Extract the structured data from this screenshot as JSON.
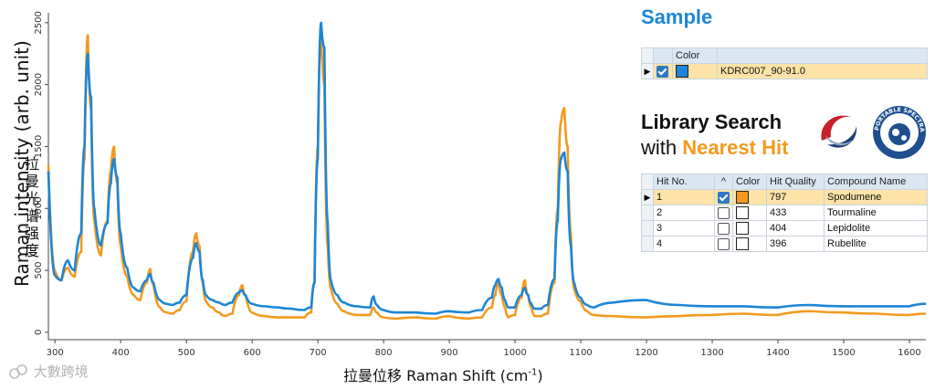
{
  "chart_data": {
    "type": "line",
    "xlabel": "拉曼位移 Raman Shift (cm",
    "xlabel_sup": "-1",
    "xlabel_close": ")",
    "ylabel": "Raman intensity (arb. unit)",
    "ylabel_zh": "拉曼光谱强度",
    "xlim": [
      290,
      1625
    ],
    "ylim": [
      -60,
      2580
    ],
    "xticks": [
      300,
      400,
      500,
      600,
      700,
      800,
      900,
      1000,
      1100,
      1200,
      1300,
      1400,
      1500,
      1600
    ],
    "yticks": [
      0,
      500,
      1000,
      1500,
      2000,
      2500
    ],
    "grid": false,
    "series": [
      {
        "color": "#f39a1e",
        "x": [
          290,
          300,
          310,
          320,
          330,
          340,
          345,
          350,
          355,
          360,
          370,
          380,
          385,
          390,
          395,
          400,
          410,
          420,
          430,
          440,
          445,
          450,
          460,
          470,
          480,
          490,
          500,
          510,
          515,
          520,
          525,
          530,
          540,
          550,
          560,
          570,
          580,
          585,
          590,
          600,
          620,
          640,
          660,
          680,
          690,
          695,
          700,
          705,
          710,
          715,
          720,
          730,
          740,
          760,
          780,
          785,
          790,
          800,
          820,
          850,
          880,
          900,
          930,
          950,
          965,
          970,
          975,
          980,
          985,
          990,
          1000,
          1010,
          1015,
          1020,
          1025,
          1030,
          1040,
          1050,
          1060,
          1065,
          1070,
          1075,
          1080,
          1085,
          1090,
          1100,
          1110,
          1120,
          1150,
          1200,
          1250,
          1300,
          1350,
          1400,
          1450,
          1500,
          1550,
          1600,
          1625
        ],
        "y": [
          1350,
          500,
          420,
          520,
          450,
          650,
          1400,
          2400,
          1800,
          900,
          620,
          900,
          1300,
          1500,
          1200,
          700,
          450,
          300,
          260,
          400,
          510,
          380,
          200,
          160,
          150,
          180,
          250,
          650,
          800,
          700,
          400,
          250,
          200,
          160,
          130,
          150,
          300,
          380,
          300,
          160,
          130,
          120,
          120,
          120,
          160,
          400,
          1500,
          2450,
          2000,
          700,
          350,
          230,
          170,
          140,
          140,
          200,
          160,
          120,
          110,
          120,
          110,
          130,
          110,
          120,
          200,
          300,
          400,
          300,
          200,
          120,
          140,
          280,
          420,
          300,
          200,
          130,
          130,
          150,
          400,
          1000,
          1700,
          1810,
          1500,
          800,
          350,
          250,
          170,
          140,
          130,
          120,
          130,
          140,
          150,
          140,
          170,
          160,
          150,
          140,
          150
        ]
      },
      {
        "color": "#1d86d6",
        "x": [
          290,
          300,
          310,
          320,
          330,
          340,
          345,
          350,
          355,
          360,
          370,
          380,
          385,
          390,
          395,
          400,
          410,
          420,
          430,
          440,
          445,
          450,
          460,
          470,
          480,
          490,
          500,
          510,
          515,
          520,
          525,
          530,
          540,
          550,
          560,
          570,
          580,
          585,
          590,
          600,
          620,
          640,
          660,
          680,
          690,
          695,
          700,
          705,
          710,
          715,
          720,
          730,
          740,
          760,
          780,
          785,
          790,
          800,
          820,
          850,
          880,
          900,
          930,
          950,
          965,
          970,
          975,
          980,
          985,
          990,
          1000,
          1010,
          1015,
          1020,
          1025,
          1030,
          1040,
          1050,
          1060,
          1065,
          1070,
          1075,
          1080,
          1085,
          1090,
          1100,
          1110,
          1120,
          1150,
          1200,
          1250,
          1300,
          1350,
          1400,
          1450,
          1500,
          1550,
          1600,
          1625
        ],
        "y": [
          1300,
          460,
          420,
          580,
          500,
          800,
          1500,
          2250,
          1900,
          1000,
          700,
          880,
          1200,
          1400,
          1250,
          800,
          520,
          360,
          330,
          420,
          470,
          400,
          260,
          230,
          220,
          240,
          300,
          600,
          720,
          650,
          420,
          300,
          260,
          240,
          220,
          240,
          320,
          340,
          300,
          230,
          210,
          200,
          190,
          180,
          200,
          400,
          1400,
          2500,
          2300,
          900,
          420,
          300,
          240,
          210,
          200,
          290,
          220,
          180,
          160,
          160,
          150,
          170,
          160,
          180,
          280,
          380,
          430,
          360,
          260,
          200,
          200,
          300,
          360,
          300,
          230,
          190,
          190,
          220,
          430,
          900,
          1400,
          1450,
          1300,
          700,
          400,
          280,
          220,
          200,
          240,
          260,
          220,
          210,
          210,
          200,
          220,
          210,
          210,
          210,
          230
        ]
      }
    ]
  },
  "panel": {
    "sample_title": "Sample",
    "sample_table": {
      "header": [
        "",
        "",
        "Color",
        ""
      ],
      "row": {
        "indicator": "▶",
        "checked": true,
        "swatch": "#1d86d6",
        "name": "KDRC007_90-91.0"
      }
    },
    "library_title": "Library Search",
    "with_text": "with",
    "nearest_hit": "Nearest Hit",
    "logo_text": "PORTABLE SPECTRAL SERVICES",
    "hit_table": {
      "headers": [
        "Hit No.",
        "^",
        "Color",
        "Hit Quality",
        "Compound Name"
      ],
      "rows": [
        {
          "indicator": "▶",
          "no": "1",
          "checked": true,
          "swatch": "#f39a1e",
          "quality": "797",
          "name": "Spodumene"
        },
        {
          "indicator": "",
          "no": "2",
          "checked": false,
          "swatch": "#ffffff",
          "quality": "433",
          "name": "Tourmaline"
        },
        {
          "indicator": "",
          "no": "3",
          "checked": false,
          "swatch": "#ffffff",
          "quality": "404",
          "name": "Lepidolite"
        },
        {
          "indicator": "",
          "no": "4",
          "checked": false,
          "swatch": "#ffffff",
          "quality": "396",
          "name": "Rubellite"
        }
      ]
    }
  },
  "watermark": "大數跨境"
}
